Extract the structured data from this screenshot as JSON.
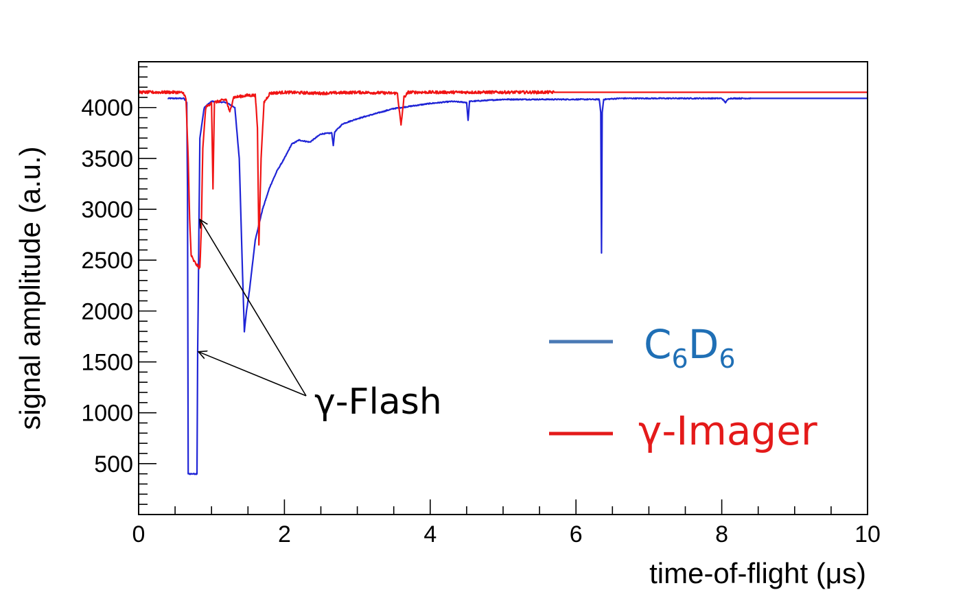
{
  "chart_data": {
    "type": "line",
    "xlabel": "time-of-flight (μs)",
    "ylabel": "signal amplitude (a.u.)",
    "xlim": [
      0,
      10
    ],
    "ylim": [
      0,
      4450
    ],
    "x_ticks": [
      0,
      2,
      4,
      6,
      8,
      10
    ],
    "x_tick_labels": [
      "0",
      "2",
      "4",
      "6",
      "8",
      "10"
    ],
    "y_ticks": [
      500,
      1000,
      1500,
      2000,
      2500,
      3000,
      3500,
      4000
    ],
    "y_tick_labels": [
      "500",
      "1000",
      "1500",
      "2000",
      "2500",
      "3000",
      "3500",
      "4000"
    ],
    "legend_position": "right",
    "series": [
      {
        "name_main": "C",
        "name_sub1": "6",
        "name_mid": "D",
        "name_sub2": "6",
        "color": "#1f24d6",
        "legend_color": "#4a7ab5",
        "label_color": "#1f6fb5",
        "points": [
          [
            0.4,
            4090
          ],
          [
            0.62,
            4090
          ],
          [
            0.66,
            4050
          ],
          [
            0.67,
            3200
          ],
          [
            0.68,
            400
          ],
          [
            0.8,
            400
          ],
          [
            0.81,
            1600
          ],
          [
            0.84,
            3700
          ],
          [
            0.9,
            4000
          ],
          [
            1.0,
            4060
          ],
          [
            1.2,
            4050
          ],
          [
            1.32,
            4000
          ],
          [
            1.38,
            3500
          ],
          [
            1.42,
            2500
          ],
          [
            1.45,
            1800
          ],
          [
            1.48,
            2000
          ],
          [
            1.52,
            2200
          ],
          [
            1.6,
            2700
          ],
          [
            1.7,
            3000
          ],
          [
            1.8,
            3220
          ],
          [
            1.9,
            3380
          ],
          [
            2.0,
            3500
          ],
          [
            2.1,
            3640
          ],
          [
            2.2,
            3680
          ],
          [
            2.35,
            3660
          ],
          [
            2.5,
            3740
          ],
          [
            2.65,
            3750
          ],
          [
            2.67,
            3630
          ],
          [
            2.69,
            3760
          ],
          [
            2.8,
            3840
          ],
          [
            3.0,
            3890
          ],
          [
            3.3,
            3950
          ],
          [
            3.5,
            3990
          ],
          [
            3.7,
            4010
          ],
          [
            4.0,
            4040
          ],
          [
            4.3,
            4060
          ],
          [
            4.5,
            4050
          ],
          [
            4.52,
            3870
          ],
          [
            4.54,
            4060
          ],
          [
            5.0,
            4080
          ],
          [
            5.5,
            4080
          ],
          [
            6.0,
            4080
          ],
          [
            6.32,
            4080
          ],
          [
            6.34,
            3950
          ],
          [
            6.35,
            2570
          ],
          [
            6.36,
            3950
          ],
          [
            6.38,
            4080
          ],
          [
            6.6,
            4090
          ],
          [
            8.0,
            4090
          ],
          [
            8.05,
            4050
          ],
          [
            8.1,
            4090
          ],
          [
            8.4,
            4090
          ],
          [
            10.0,
            4090
          ]
        ]
      },
      {
        "name_main": "γ-Imager",
        "color": "#f01414",
        "legend_color": "#e41a1a",
        "label_color": "#e41a1a",
        "points": [
          [
            0.0,
            4150
          ],
          [
            0.55,
            4150
          ],
          [
            0.62,
            4140
          ],
          [
            0.65,
            4080
          ],
          [
            0.68,
            3500
          ],
          [
            0.7,
            2900
          ],
          [
            0.72,
            2550
          ],
          [
            0.75,
            2500
          ],
          [
            0.8,
            2450
          ],
          [
            0.84,
            2420
          ],
          [
            0.86,
            2800
          ],
          [
            0.88,
            3600
          ],
          [
            0.92,
            4000
          ],
          [
            1.0,
            4050
          ],
          [
            1.02,
            3200
          ],
          [
            1.04,
            4050
          ],
          [
            1.2,
            4080
          ],
          [
            1.25,
            3950
          ],
          [
            1.3,
            4100
          ],
          [
            1.5,
            4120
          ],
          [
            1.6,
            4120
          ],
          [
            1.63,
            3800
          ],
          [
            1.65,
            2650
          ],
          [
            1.68,
            3500
          ],
          [
            1.72,
            4050
          ],
          [
            1.8,
            4140
          ],
          [
            2.0,
            4150
          ],
          [
            2.5,
            4140
          ],
          [
            3.0,
            4150
          ],
          [
            3.55,
            4140
          ],
          [
            3.6,
            3820
          ],
          [
            3.64,
            4100
          ],
          [
            3.7,
            4150
          ],
          [
            4.0,
            4150
          ],
          [
            5.0,
            4150
          ],
          [
            5.7,
            4150
          ],
          [
            6.0,
            4150
          ],
          [
            8.0,
            4150
          ],
          [
            10.0,
            4150
          ]
        ]
      }
    ],
    "annotations": [
      {
        "text": "γ-Flash",
        "arrow_targets": [
          [
            0.82,
            1600
          ],
          [
            0.84,
            2900
          ]
        ]
      }
    ]
  }
}
